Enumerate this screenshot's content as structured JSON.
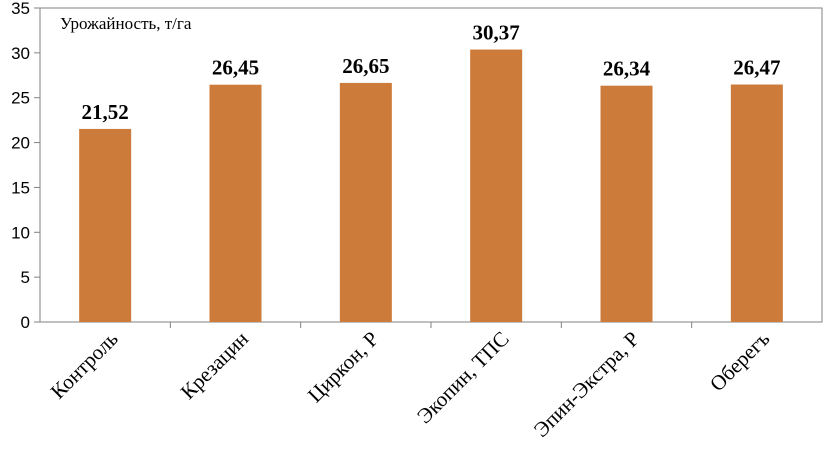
{
  "chart_data": {
    "type": "bar",
    "ylabel": "Урожайность, т/га",
    "categories": [
      "Контроль",
      "Крезацин",
      "Циркон, Р",
      "Экопин, ТПС",
      "Эпин-Экстра, Р",
      "Оберегъ"
    ],
    "values": [
      21.52,
      26.45,
      26.65,
      30.37,
      26.34,
      26.47
    ],
    "value_labels": [
      "21,52",
      "26,45",
      "26,65",
      "30,37",
      "26,34",
      "26,47"
    ],
    "yticks": [
      0,
      5,
      10,
      15,
      20,
      25,
      30,
      35
    ],
    "ylim": [
      0,
      35
    ],
    "grid": false,
    "legend": "none",
    "bar_color": "#cd7b3a"
  }
}
